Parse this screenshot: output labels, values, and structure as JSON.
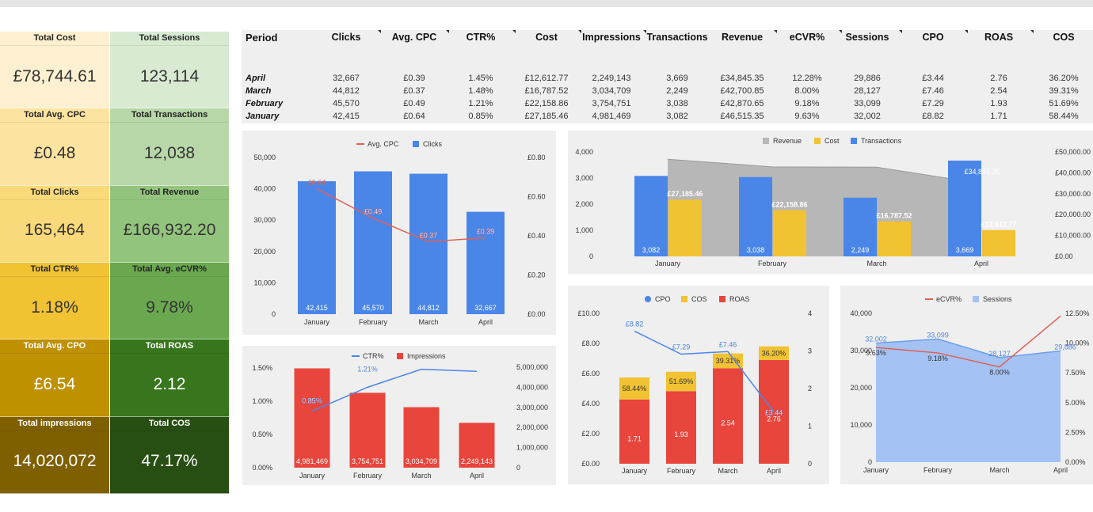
{
  "kpis": [
    {
      "label": "Total Cost",
      "value": "£78,744.61",
      "bg": "#fdf0d0",
      "dark": false
    },
    {
      "label": "Total Sessions",
      "value": "123,114",
      "bg": "#d9ead3",
      "dark": false
    },
    {
      "label": "Total Avg. CPC",
      "value": "£0.48",
      "bg": "#fde3a0",
      "dark": false
    },
    {
      "label": "Total Transactions",
      "value": "12,038",
      "bg": "#b7d7a8",
      "dark": false
    },
    {
      "label": "Total Clicks",
      "value": "165,464",
      "bg": "#fad97a",
      "dark": false
    },
    {
      "label": "Total Revenue",
      "value": "£166,932.20",
      "bg": "#93c47d",
      "dark": false
    },
    {
      "label": "Total CTR%",
      "value": "1.18%",
      "bg": "#f1c232",
      "dark": false
    },
    {
      "label": "Total Avg. eCVR%",
      "value": "9.78%",
      "bg": "#6aa84f",
      "dark": false
    },
    {
      "label": "Total Avg. CPO",
      "value": "£6.54",
      "bg": "#bf9000",
      "dark": true
    },
    {
      "label": "Total ROAS",
      "value": "2.12",
      "bg": "#38761d",
      "dark": true
    },
    {
      "label": "Total impressions",
      "value": "14,020,072",
      "bg": "#7f6000",
      "dark": true
    },
    {
      "label": "Total COS",
      "value": "47.17%",
      "bg": "#274e13",
      "dark": true
    }
  ],
  "table": {
    "headers": [
      "Period",
      "Clicks",
      "Avg. CPC",
      "CTR%",
      "Cost",
      "Impressions",
      "Transactions",
      "Revenue",
      "eCVR%",
      "Sessions",
      "CPO",
      "ROAS",
      "COS"
    ],
    "rows": [
      {
        "period": "April",
        "cells": [
          "32,667",
          "£0.39",
          "1.45%",
          "£12,612.77",
          "2,249,143",
          "3,669",
          "£34,845.35",
          "12.28%",
          "29,886",
          "£3.44",
          "2.76",
          "36.20%"
        ]
      },
      {
        "period": "March",
        "cells": [
          "44,812",
          "£0.37",
          "1.48%",
          "£16,787.52",
          "3,034,709",
          "2,249",
          "£42,700.85",
          "8.00%",
          "28,127",
          "£7.46",
          "2.54",
          "39.31%"
        ]
      },
      {
        "period": "February",
        "cells": [
          "45,570",
          "£0.49",
          "1.21%",
          "£22,158.86",
          "3,754,751",
          "3,038",
          "£42,870.65",
          "9.18%",
          "33,099",
          "£7.29",
          "1.93",
          "51.69%"
        ]
      },
      {
        "period": "January",
        "cells": [
          "42,415",
          "£0.64",
          "0.85%",
          "£27,185.46",
          "4,981,469",
          "3,082",
          "£46,515.35",
          "9.63%",
          "32,002",
          "£8.82",
          "1.71",
          "58.44%"
        ]
      }
    ]
  },
  "chart_data": [
    {
      "id": "clicks_cpc",
      "type": "bar",
      "categories": [
        "January",
        "February",
        "March",
        "April"
      ],
      "legend": [
        "Avg. CPC",
        "Clicks"
      ],
      "series": [
        {
          "name": "Clicks",
          "values": [
            42415,
            45570,
            44812,
            32667
          ],
          "labels": [
            "42,415",
            "45,570",
            "44,812",
            "32,667"
          ],
          "color": "#4a86e8",
          "axis": "left"
        },
        {
          "name": "Avg. CPC",
          "type": "line",
          "values": [
            0.64,
            0.49,
            0.37,
            0.39
          ],
          "labels": [
            "£0.64",
            "£0.49",
            "£0.37",
            "£0.39"
          ],
          "color": "#e06055",
          "axis": "right"
        }
      ],
      "yticks_left": [
        "50,000",
        "40,000",
        "30,000",
        "20,000",
        "10,000",
        "0"
      ],
      "yticks_right": [
        "£0.80",
        "£0.60",
        "£0.40",
        "£0.20",
        "£0.00"
      ],
      "ylim_left": [
        0,
        50000
      ],
      "ylim_right": [
        0,
        0.8
      ]
    },
    {
      "id": "rev_cost_trans",
      "type": "bar",
      "categories": [
        "January",
        "February",
        "March",
        "April"
      ],
      "legend": [
        "Revenue",
        "Cost",
        "Transactions"
      ],
      "series": [
        {
          "name": "Revenue",
          "type": "area",
          "values": [
            46515.35,
            42870.65,
            42700.85,
            34845.35
          ],
          "color": "#b7b7b7",
          "axis": "right"
        },
        {
          "name": "Transactions",
          "values": [
            3082,
            3038,
            2249,
            3669
          ],
          "labels": [
            "3,082",
            "3,038",
            "2,249",
            "3,669"
          ],
          "color": "#4a86e8",
          "axis": "left"
        },
        {
          "name": "Cost",
          "values": [
            27185.46,
            22158.86,
            16787.52,
            12612.77
          ],
          "labels": [
            "£27,185.46",
            "£22,158.86",
            "£16,787.52",
            "£12,612.77"
          ],
          "color": "#f1c232",
          "axis": "right"
        }
      ],
      "revenue_label": "£34,845.35",
      "yticks_left": [
        "4,000",
        "3,000",
        "2,000",
        "1,000",
        "0"
      ],
      "yticks_right": [
        "£50,000.00",
        "£40,000.00",
        "£30,000.00",
        "£20,000.00",
        "£10,000.00",
        "£0.00"
      ],
      "ylim_left": [
        0,
        4000
      ],
      "ylim_right": [
        0,
        50000
      ]
    },
    {
      "id": "ctr_impr",
      "type": "bar",
      "categories": [
        "January",
        "February",
        "March",
        "April"
      ],
      "legend": [
        "CTR%",
        "Impressions"
      ],
      "series": [
        {
          "name": "Impressions",
          "values": [
            4981469,
            3754751,
            3034709,
            2249143
          ],
          "labels": [
            "4,981,469",
            "3,754,751",
            "3,034,709",
            "2,249,143"
          ],
          "color": "#e8453c",
          "axis": "right"
        },
        {
          "name": "CTR%",
          "type": "line",
          "values": [
            0.85,
            1.21,
            1.48,
            1.45
          ],
          "labels": [
            "0.85%",
            "1.21%",
            "",
            ""
          ],
          "color": "#4a86e8",
          "axis": "left"
        }
      ],
      "yticks_left": [
        "1.50%",
        "1.00%",
        "0.50%",
        "0.00%"
      ],
      "yticks_right": [
        "5,000,000",
        "4,000,000",
        "3,000,000",
        "2,000,000",
        "1,000,000",
        "0"
      ],
      "ylim_left": [
        0,
        1.5
      ],
      "ylim_right": [
        0,
        5000000
      ]
    },
    {
      "id": "cpo_cos_roas",
      "type": "bar",
      "categories": [
        "January",
        "February",
        "March",
        "April"
      ],
      "legend": [
        "CPO",
        "COS",
        "ROAS"
      ],
      "series": [
        {
          "name": "ROAS",
          "values": [
            1.71,
            1.93,
            2.54,
            2.76
          ],
          "labels": [
            "1.71",
            "1.93",
            "2.54",
            "2.76"
          ],
          "color": "#e8453c",
          "axis": "right"
        },
        {
          "name": "COS",
          "values": [
            0.5844,
            0.5169,
            0.3931,
            0.362
          ],
          "labels": [
            "58.44%",
            "51.69%",
            "39.31%",
            "36.20%"
          ],
          "color": "#f1c232",
          "axis": "right"
        },
        {
          "name": "CPO",
          "type": "line",
          "values": [
            8.82,
            7.29,
            7.46,
            3.44
          ],
          "labels": [
            "£8.82",
            "£7.29",
            "£7.46",
            "£3.44"
          ],
          "color": "#4a86e8",
          "axis": "left"
        }
      ],
      "yticks_left": [
        "£10.00",
        "£8.00",
        "£6.00",
        "£4.00",
        "£2.00",
        "£0.00"
      ],
      "yticks_right": [
        "4",
        "3",
        "2",
        "1",
        "0"
      ],
      "ylim_left": [
        0,
        10
      ],
      "ylim_right": [
        0,
        4
      ]
    },
    {
      "id": "ecvr_sessions",
      "type": "area",
      "categories": [
        "January",
        "February",
        "March",
        "April"
      ],
      "legend": [
        "eCVR%",
        "Sessions"
      ],
      "series": [
        {
          "name": "Sessions",
          "type": "area",
          "values": [
            32002,
            33099,
            28127,
            29886
          ],
          "labels": [
            "32,002",
            "33,099",
            "28,127",
            "29,886"
          ],
          "color": "#a4c2f4",
          "axis": "left"
        },
        {
          "name": "eCVR%",
          "type": "line",
          "values": [
            9.63,
            9.18,
            8.0,
            12.28
          ],
          "labels": [
            "9.63%",
            "9.18%",
            "8.00%",
            ""
          ],
          "color": "#e06055",
          "axis": "right"
        }
      ],
      "yticks_left": [
        "40,000",
        "30,000",
        "20,000",
        "10,000",
        "0"
      ],
      "yticks_right": [
        "12.50%",
        "10.00%",
        "7.50%",
        "5.00%",
        "2.50%",
        "0.00%"
      ],
      "ylim_left": [
        0,
        40000
      ],
      "ylim_right": [
        0,
        12.5
      ]
    }
  ]
}
